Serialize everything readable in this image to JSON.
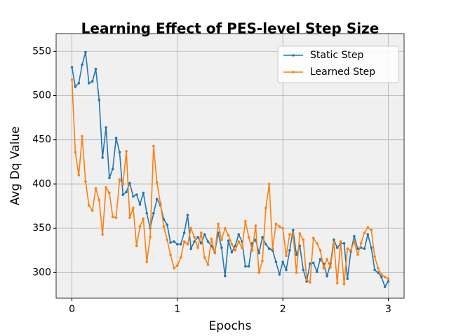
{
  "chart_data": {
    "type": "line",
    "title": "Learning Effect of PES-level Step Size",
    "xlabel": "Epochs",
    "ylabel": "Avg Dq Value",
    "x": [
      0,
      0.032,
      0.065,
      0.097,
      0.129,
      0.161,
      0.194,
      0.226,
      0.258,
      0.29,
      0.323,
      0.355,
      0.387,
      0.419,
      0.452,
      0.484,
      0.516,
      0.548,
      0.581,
      0.613,
      0.645,
      0.677,
      0.71,
      0.742,
      0.774,
      0.806,
      0.839,
      0.871,
      0.903,
      0.935,
      0.968,
      1,
      1.032,
      1.065,
      1.097,
      1.129,
      1.161,
      1.194,
      1.226,
      1.258,
      1.29,
      1.323,
      1.355,
      1.387,
      1.419,
      1.452,
      1.484,
      1.516,
      1.548,
      1.581,
      1.613,
      1.645,
      1.677,
      1.71,
      1.742,
      1.774,
      1.806,
      1.839,
      1.871,
      1.903,
      1.935,
      1.968,
      2,
      2.032,
      2.065,
      2.097,
      2.129,
      2.161,
      2.194,
      2.226,
      2.258,
      2.29,
      2.323,
      2.355,
      2.387,
      2.419,
      2.452,
      2.484,
      2.516,
      2.548,
      2.581,
      2.613,
      2.645,
      2.677,
      2.71,
      2.742,
      2.774,
      2.806,
      2.839,
      2.871,
      2.903,
      2.935,
      2.968,
      3
    ],
    "series": [
      {
        "name": "Static Step",
        "color": "#1f77b4",
        "values": [
          532,
          510,
          514,
          535,
          549,
          514,
          516,
          530,
          495,
          430,
          464,
          407,
          417,
          452,
          436,
          388,
          391,
          401,
          386,
          388,
          377,
          390,
          367,
          350,
          367,
          383,
          376,
          360,
          354,
          334,
          335,
          332,
          332,
          345,
          365,
          327,
          335,
          340,
          333,
          343,
          335,
          330,
          323,
          345,
          328,
          296,
          336,
          323,
          330,
          343,
          335,
          307,
          307,
          333,
          337,
          322,
          340,
          332,
          327,
          325,
          312,
          298,
          312,
          303,
          325,
          348,
          320,
          330,
          303,
          290,
          310,
          311,
          301,
          315,
          310,
          296,
          310,
          337,
          328,
          333,
          333,
          293,
          324,
          341,
          327,
          328,
          327,
          343,
          328,
          303,
          300,
          295,
          284,
          290
        ]
      },
      {
        "name": "Learned Step",
        "color": "#ff7f0e",
        "values": [
          518,
          436,
          410,
          454,
          403,
          376,
          370,
          395,
          382,
          343,
          396,
          390,
          363,
          362,
          405,
          400,
          437,
          362,
          373,
          330,
          352,
          361,
          312,
          340,
          443,
          402,
          378,
          352,
          337,
          320,
          305,
          308,
          317,
          335,
          332,
          350,
          340,
          328,
          345,
          317,
          309,
          338,
          322,
          355,
          337,
          350,
          342,
          332,
          325,
          335,
          328,
          358,
          340,
          325,
          353,
          300,
          313,
          373,
          400,
          327,
          355,
          352,
          350,
          319,
          343,
          344,
          300,
          344,
          337,
          292,
          289,
          339,
          333,
          325,
          305,
          315,
          306,
          334,
          288,
          335,
          287,
          327,
          325,
          335,
          320,
          333,
          345,
          351,
          348,
          318,
          305,
          298,
          295,
          293
        ]
      }
    ],
    "xlim": [
      -0.15,
      3.15
    ],
    "ylim": [
      271,
      570
    ],
    "xticks": [
      0,
      1,
      2,
      3
    ],
    "yticks": [
      300,
      350,
      400,
      450,
      500,
      550
    ],
    "grid": true,
    "legend": "upper right"
  }
}
